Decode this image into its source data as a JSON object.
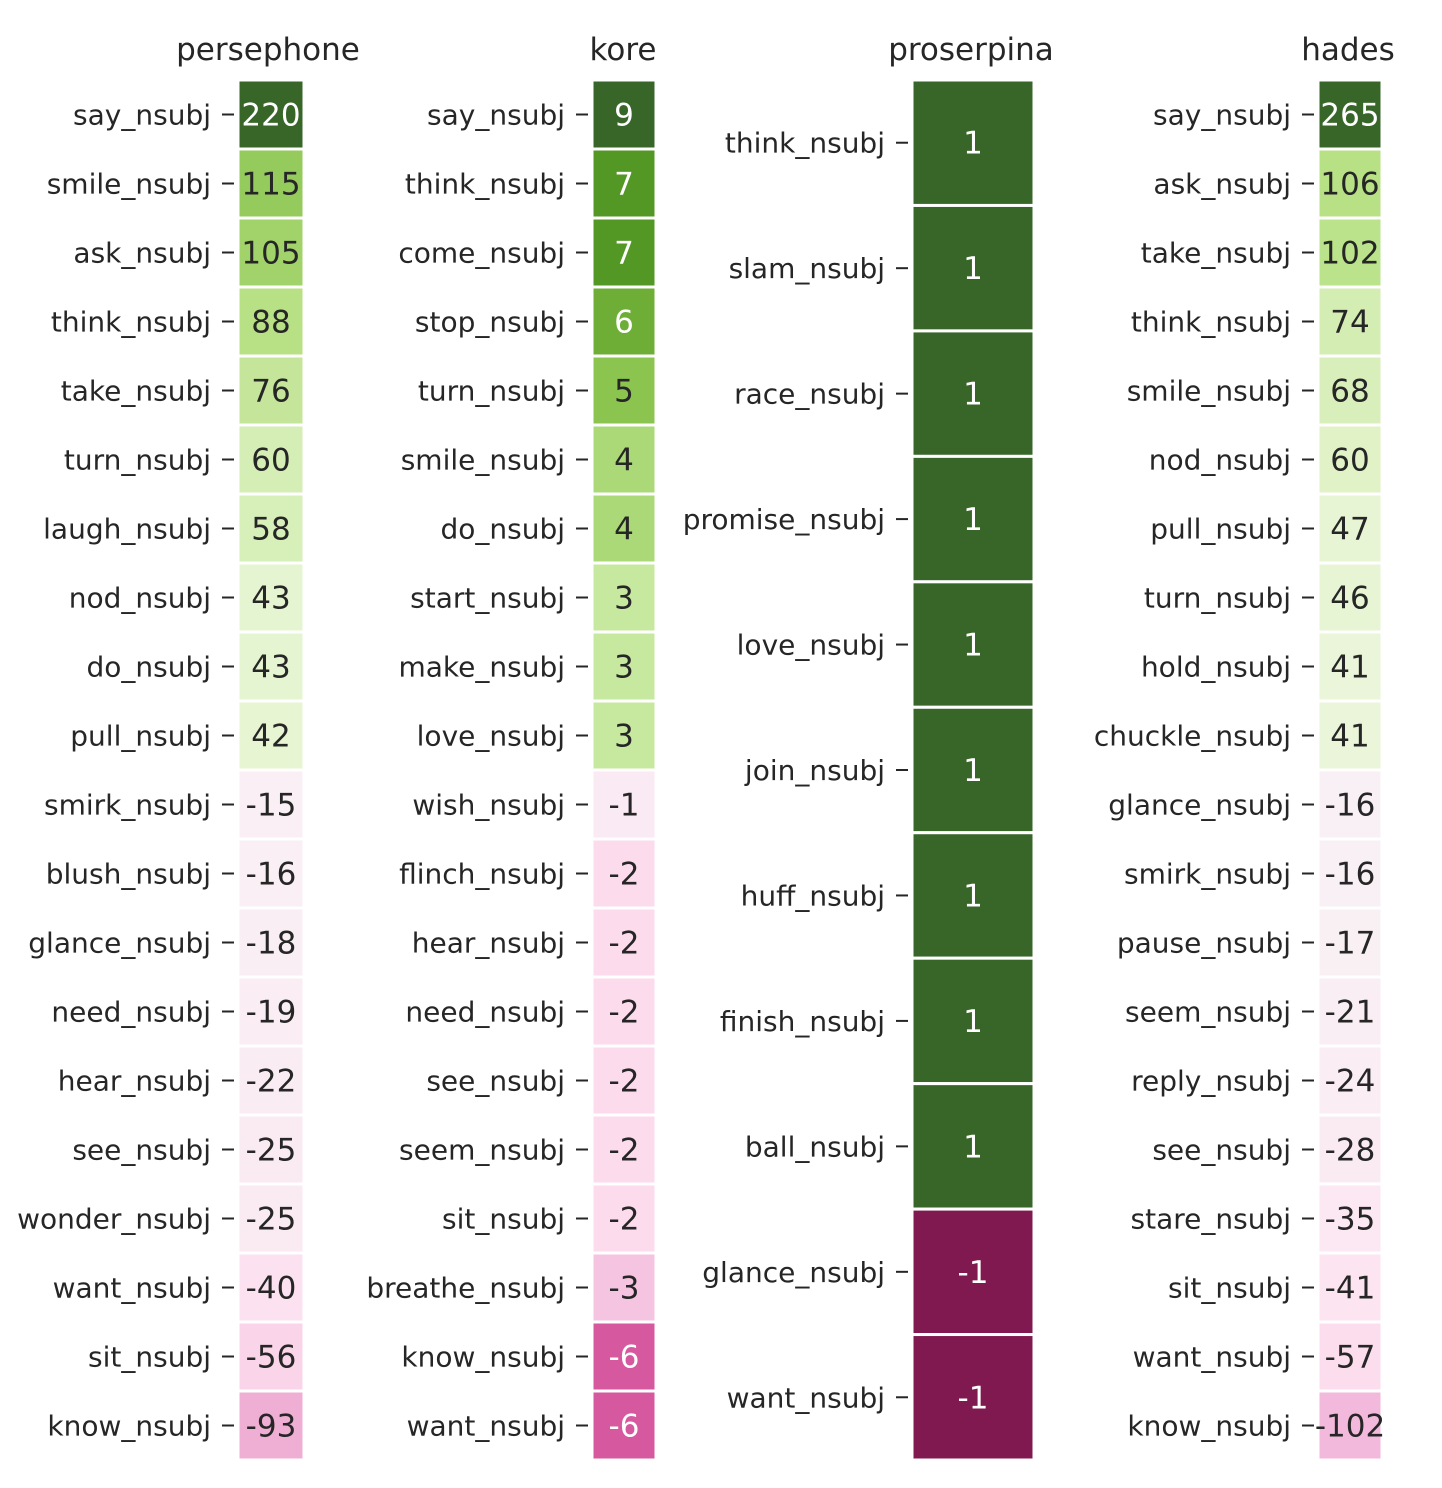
{
  "chart_data": [
    {
      "type": "heatmap",
      "title": "persephone",
      "labels": [
        "say_nsubj",
        "smile_nsubj",
        "ask_nsubj",
        "think_nsubj",
        "take_nsubj",
        "turn_nsubj",
        "laugh_nsubj",
        "nod_nsubj",
        "do_nsubj",
        "pull_nsubj",
        "smirk_nsubj",
        "blush_nsubj",
        "glance_nsubj",
        "need_nsubj",
        "hear_nsubj",
        "see_nsubj",
        "wonder_nsubj",
        "want_nsubj",
        "sit_nsubj",
        "know_nsubj"
      ],
      "values": [
        220,
        115,
        105,
        88,
        76,
        60,
        58,
        43,
        43,
        42,
        -15,
        -16,
        -18,
        -19,
        -22,
        -25,
        -25,
        -40,
        -56,
        -93
      ],
      "colormap": "PiYG"
    },
    {
      "type": "heatmap",
      "title": "kore",
      "labels": [
        "say_nsubj",
        "think_nsubj",
        "come_nsubj",
        "stop_nsubj",
        "turn_nsubj",
        "smile_nsubj",
        "do_nsubj",
        "start_nsubj",
        "make_nsubj",
        "love_nsubj",
        "wish_nsubj",
        "flinch_nsubj",
        "hear_nsubj",
        "need_nsubj",
        "see_nsubj",
        "seem_nsubj",
        "sit_nsubj",
        "breathe_nsubj",
        "know_nsubj",
        "want_nsubj"
      ],
      "values": [
        9,
        7,
        7,
        6,
        5,
        4,
        4,
        3,
        3,
        3,
        -1,
        -2,
        -2,
        -2,
        -2,
        -2,
        -2,
        -3,
        -6,
        -6
      ],
      "colormap": "PiYG"
    },
    {
      "type": "heatmap",
      "title": "proserpina",
      "labels": [
        "think_nsubj",
        "slam_nsubj",
        "race_nsubj",
        "promise_nsubj",
        "love_nsubj",
        "join_nsubj",
        "huff_nsubj",
        "finish_nsubj",
        "ball_nsubj",
        "glance_nsubj",
        "want_nsubj"
      ],
      "values": [
        1,
        1,
        1,
        1,
        1,
        1,
        1,
        1,
        1,
        -1,
        -1
      ],
      "colormap": "PiYG"
    },
    {
      "type": "heatmap",
      "title": "hades",
      "labels": [
        "say_nsubj",
        "ask_nsubj",
        "take_nsubj",
        "think_nsubj",
        "smile_nsubj",
        "nod_nsubj",
        "pull_nsubj",
        "turn_nsubj",
        "hold_nsubj",
        "chuckle_nsubj",
        "glance_nsubj",
        "smirk_nsubj",
        "pause_nsubj",
        "seem_nsubj",
        "reply_nsubj",
        "see_nsubj",
        "stare_nsubj",
        "sit_nsubj",
        "want_nsubj",
        "know_nsubj"
      ],
      "values": [
        265,
        106,
        102,
        74,
        68,
        60,
        47,
        46,
        41,
        41,
        -16,
        -16,
        -17,
        -21,
        -24,
        -28,
        -35,
        -41,
        -57,
        -102
      ],
      "colormap": "PiYG"
    }
  ],
  "colors": {
    "positive_max": "#386629",
    "negative_max": "#80194f",
    "neutral": "#f7f7f7",
    "text_dark": "#262626",
    "grid_line": "#ffffff"
  }
}
